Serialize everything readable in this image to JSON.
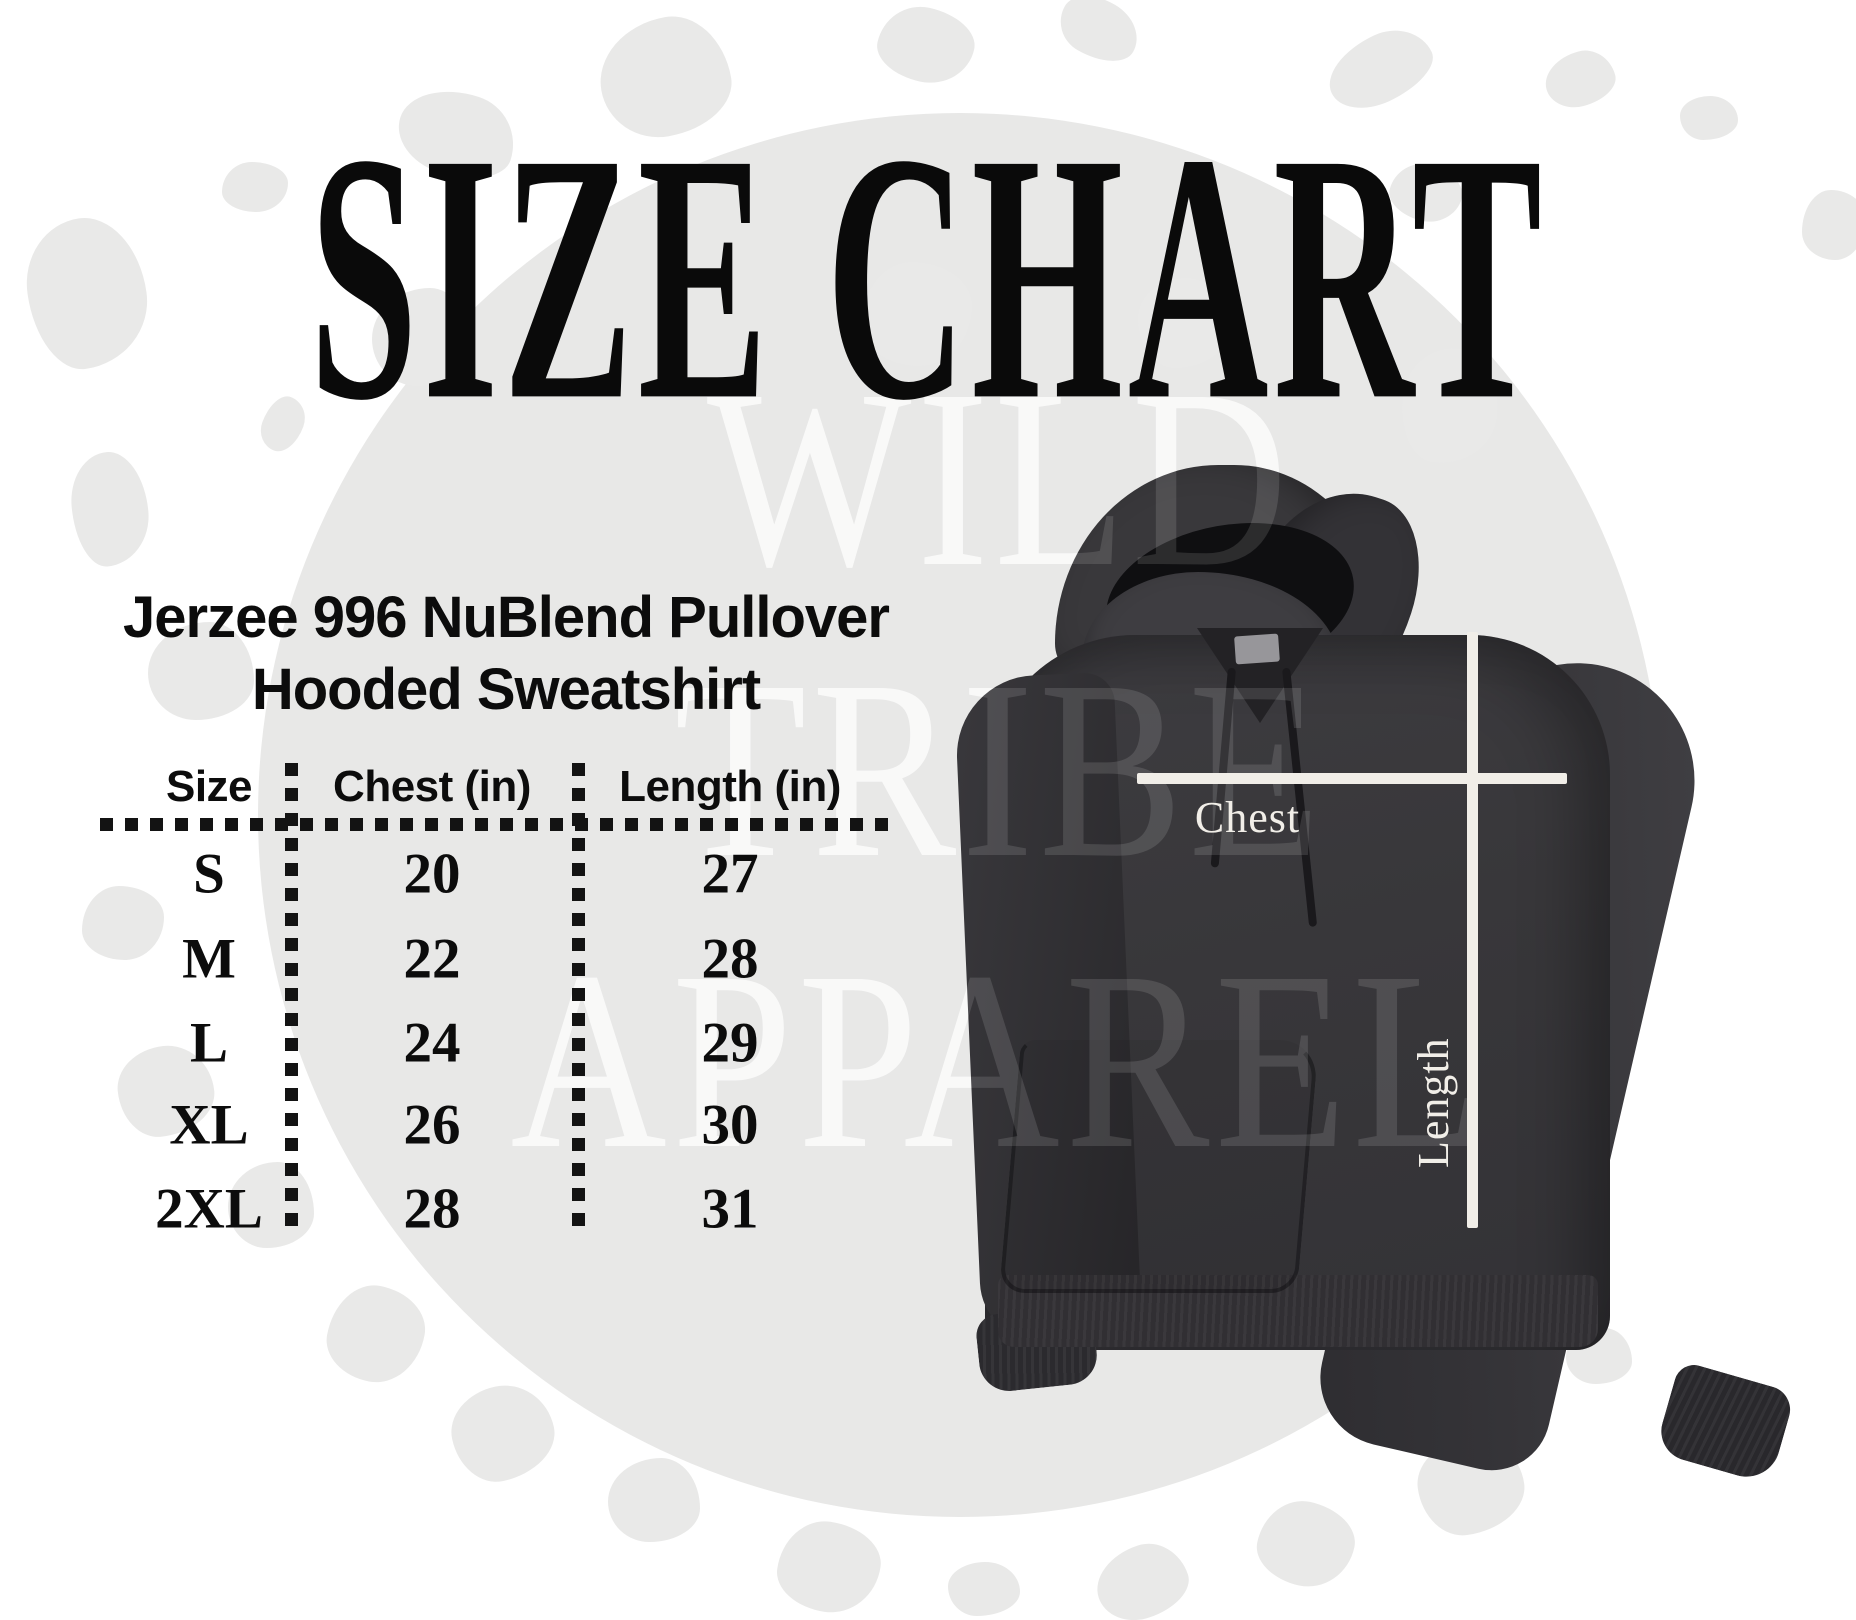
{
  "title": "SIZE CHART",
  "subtitle": {
    "line1": "Jerzee 996 NuBlend Pullover",
    "line2": "Hooded Sweatshirt"
  },
  "table": {
    "columns": [
      "Size",
      "Chest (in)",
      "Length (in)"
    ],
    "rows": [
      [
        "S",
        "20",
        "27"
      ],
      [
        "M",
        "22",
        "28"
      ],
      [
        "L",
        "24",
        "29"
      ],
      [
        "XL",
        "26",
        "30"
      ],
      [
        "2XL",
        "28",
        "31"
      ]
    ]
  },
  "watermark": {
    "lines": [
      "WILD",
      "TRIBE",
      "APPAREL"
    ]
  },
  "hoodie": {
    "chest_label": "Chest",
    "length_label": "Length"
  },
  "colors": {
    "ink": "#0d0d0d",
    "circle_gray": "#e8e8e7",
    "hoodie_charcoal": "#39383b",
    "measure_line": "#f1eee8"
  },
  "chart_data": {
    "type": "table",
    "title": "SIZE CHART",
    "subject": "Jerzee 996 NuBlend Pullover Hooded Sweatshirt",
    "columns": [
      "Size",
      "Chest (in)",
      "Length (in)"
    ],
    "rows": [
      [
        "S",
        20,
        27
      ],
      [
        "M",
        22,
        28
      ],
      [
        "L",
        24,
        29
      ],
      [
        "XL",
        26,
        30
      ],
      [
        "2XL",
        28,
        31
      ]
    ]
  }
}
